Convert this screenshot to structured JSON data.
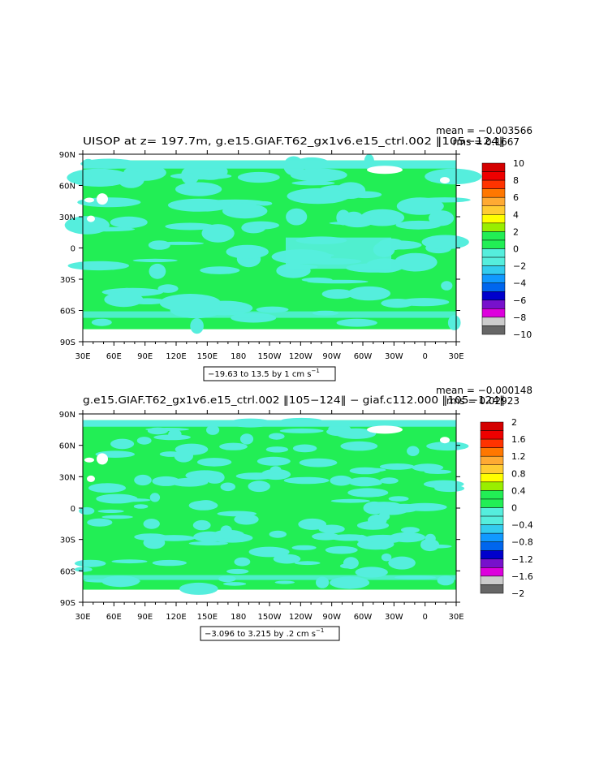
{
  "colors": {
    "ocean_green": "#22ee55",
    "cyan": "#55eedd",
    "land_white": "#ffffff"
  },
  "chart_data": [
    {
      "type": "heatmap",
      "title": "UISOP at z= 197.7m, g.e15.GIAF.T62_gx1v6.e15_ctrl.002 ‖105−124‖",
      "mean_text": "mean = −0.003566",
      "rms_text": "rms = 0.1667",
      "range_text": "−19.63 to 13.5 by 1 cm s",
      "range_sup": "−1",
      "x_ticks": [
        "30E",
        "60E",
        "90E",
        "120E",
        "150E",
        "180",
        "150W",
        "120W",
        "90W",
        "60W",
        "30W",
        "0",
        "30E"
      ],
      "y_ticks": [
        "90N",
        "60N",
        "30N",
        "0",
        "30S",
        "60S",
        "90S"
      ],
      "colorbar": {
        "labels": [
          "10",
          "8",
          "6",
          "4",
          "2",
          "0",
          "−2",
          "−4",
          "−6",
          "−8",
          "−10"
        ],
        "colors": [
          "#d40000",
          "#ee0000",
          "#ff3300",
          "#ff7700",
          "#ffaa33",
          "#ffcc33",
          "#ffff00",
          "#99ee00",
          "#22ee55",
          "#22ee55",
          "#55eedd",
          "#55eedd",
          "#33ccee",
          "#1199ff",
          "#0066ee",
          "#0000cc",
          "#7711cc",
          "#dd00dd",
          "#cccccc",
          "#666666"
        ]
      }
    },
    {
      "type": "heatmap",
      "title": "g.e15.GIAF.T62_gx1v6.e15_ctrl.002 ‖105−124‖ − giaf.c112.000 ‖105−124‖",
      "mean_text": "mean = −0.000148",
      "rms_text": "rms = 0.02923",
      "range_text": "−3.096 to 3.215 by .2 cm s",
      "range_sup": "−1",
      "x_ticks": [
        "30E",
        "60E",
        "90E",
        "120E",
        "150E",
        "180",
        "150W",
        "120W",
        "90W",
        "60W",
        "30W",
        "0",
        "30E"
      ],
      "y_ticks": [
        "90N",
        "60N",
        "30N",
        "0",
        "30S",
        "60S",
        "90S"
      ],
      "colorbar": {
        "labels": [
          "2",
          "1.6",
          "1.2",
          "0.8",
          "0.4",
          "0",
          "−0.4",
          "−0.8",
          "−1.2",
          "−1.6",
          "−2"
        ],
        "colors": [
          "#d40000",
          "#ee0000",
          "#ff3300",
          "#ff7700",
          "#ffaa33",
          "#ffcc33",
          "#ffff00",
          "#99ee00",
          "#22ee55",
          "#22ee55",
          "#55eedd",
          "#55eedd",
          "#33ccee",
          "#1199ff",
          "#0066ee",
          "#0000cc",
          "#7711cc",
          "#dd00dd",
          "#cccccc",
          "#666666"
        ]
      }
    }
  ]
}
